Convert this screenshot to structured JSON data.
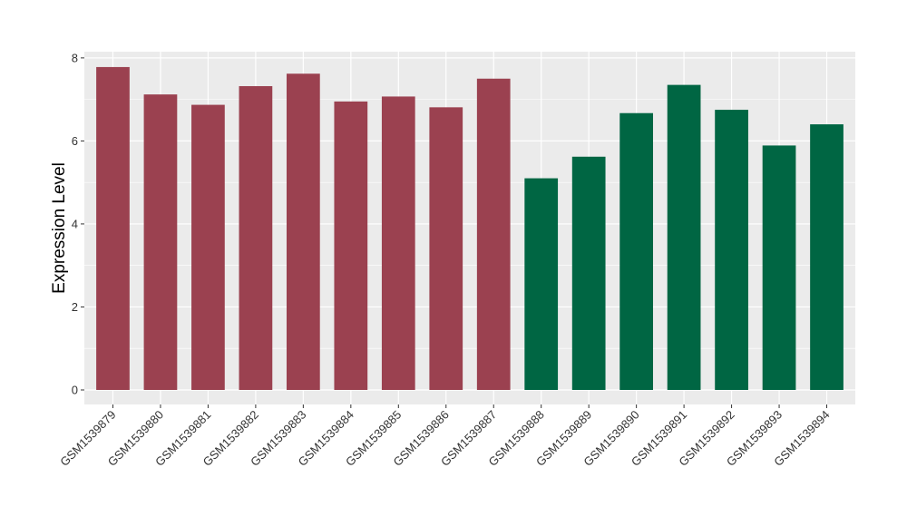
{
  "chart_data": {
    "type": "bar",
    "title": "",
    "xlabel": "",
    "ylabel": "Expression Level",
    "ylim": [
      -0.35,
      8.15
    ],
    "yticks": [
      0,
      2,
      4,
      6,
      8
    ],
    "grid": true,
    "legend": "none",
    "colors": {
      "group1": "#9b4150",
      "group2": "#006643",
      "panel_bg": "#ebebeb",
      "grid": "#ffffff"
    },
    "categories": [
      "GSM1539879",
      "GSM1539880",
      "GSM1539881",
      "GSM1539882",
      "GSM1539883",
      "GSM1539884",
      "GSM1539885",
      "GSM1539886",
      "GSM1539887",
      "GSM1539888",
      "GSM1539889",
      "GSM1539890",
      "GSM1539891",
      "GSM1539892",
      "GSM1539893",
      "GSM1539894"
    ],
    "values": [
      7.78,
      7.12,
      6.87,
      7.32,
      7.62,
      6.95,
      7.07,
      6.81,
      7.5,
      5.1,
      5.62,
      6.67,
      7.35,
      6.75,
      5.89,
      6.4
    ],
    "groups": [
      "group1",
      "group1",
      "group1",
      "group1",
      "group1",
      "group1",
      "group1",
      "group1",
      "group1",
      "group2",
      "group2",
      "group2",
      "group2",
      "group2",
      "group2",
      "group2"
    ]
  }
}
